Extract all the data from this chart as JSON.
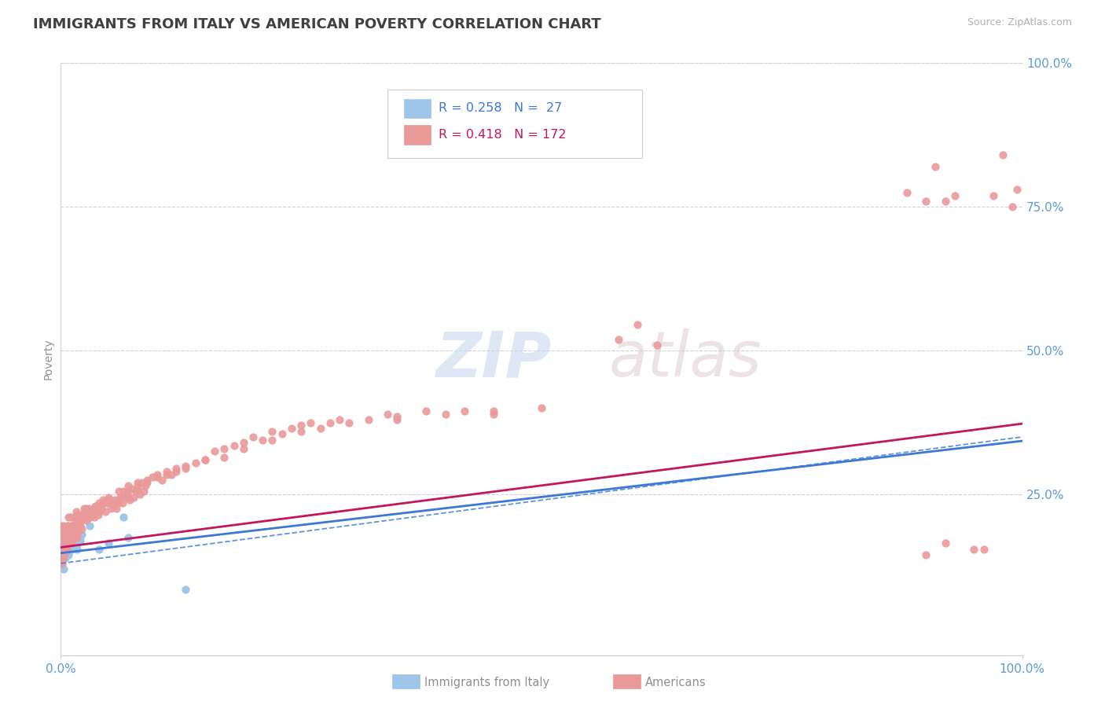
{
  "title": "IMMIGRANTS FROM ITALY VS AMERICAN POVERTY CORRELATION CHART",
  "source_text": "Source: ZipAtlas.com",
  "ylabel": "Poverty",
  "watermark_zip": "ZIP",
  "watermark_atlas": "atlas",
  "blue_R": 0.258,
  "blue_N": 27,
  "pink_R": 0.418,
  "pink_N": 172,
  "blue_color": "#9fc5e8",
  "pink_color": "#ea9999",
  "blue_line_color": "#3c78d8",
  "pink_line_color": "#c2185b",
  "blue_scatter": [
    [
      0.001,
      0.13
    ],
    [
      0.002,
      0.155
    ],
    [
      0.003,
      0.12
    ],
    [
      0.004,
      0.165
    ],
    [
      0.005,
      0.14
    ],
    [
      0.006,
      0.18
    ],
    [
      0.007,
      0.175
    ],
    [
      0.008,
      0.145
    ],
    [
      0.009,
      0.16
    ],
    [
      0.01,
      0.19
    ],
    [
      0.011,
      0.155
    ],
    [
      0.012,
      0.17
    ],
    [
      0.013,
      0.165
    ],
    [
      0.015,
      0.21
    ],
    [
      0.016,
      0.175
    ],
    [
      0.017,
      0.155
    ],
    [
      0.018,
      0.165
    ],
    [
      0.02,
      0.17
    ],
    [
      0.022,
      0.18
    ],
    [
      0.025,
      0.21
    ],
    [
      0.03,
      0.195
    ],
    [
      0.04,
      0.155
    ],
    [
      0.05,
      0.165
    ],
    [
      0.055,
      0.23
    ],
    [
      0.065,
      0.21
    ],
    [
      0.07,
      0.175
    ],
    [
      0.13,
      0.085
    ]
  ],
  "pink_scatter": [
    [
      0.0005,
      0.195
    ],
    [
      0.001,
      0.155
    ],
    [
      0.0015,
      0.13
    ],
    [
      0.002,
      0.175
    ],
    [
      0.0025,
      0.14
    ],
    [
      0.003,
      0.165
    ],
    [
      0.0035,
      0.185
    ],
    [
      0.004,
      0.145
    ],
    [
      0.0045,
      0.17
    ],
    [
      0.005,
      0.19
    ],
    [
      0.0055,
      0.155
    ],
    [
      0.006,
      0.175
    ],
    [
      0.0065,
      0.165
    ],
    [
      0.007,
      0.195
    ],
    [
      0.0075,
      0.185
    ],
    [
      0.008,
      0.21
    ],
    [
      0.0085,
      0.175
    ],
    [
      0.009,
      0.165
    ],
    [
      0.0095,
      0.19
    ],
    [
      0.01,
      0.21
    ],
    [
      0.011,
      0.18
    ],
    [
      0.012,
      0.195
    ],
    [
      0.013,
      0.185
    ],
    [
      0.014,
      0.175
    ],
    [
      0.015,
      0.205
    ],
    [
      0.016,
      0.22
    ],
    [
      0.017,
      0.19
    ],
    [
      0.018,
      0.215
    ],
    [
      0.019,
      0.2
    ],
    [
      0.02,
      0.215
    ],
    [
      0.021,
      0.205
    ],
    [
      0.022,
      0.19
    ],
    [
      0.023,
      0.215
    ],
    [
      0.024,
      0.225
    ],
    [
      0.025,
      0.21
    ],
    [
      0.026,
      0.225
    ],
    [
      0.027,
      0.205
    ],
    [
      0.028,
      0.215
    ],
    [
      0.029,
      0.225
    ],
    [
      0.03,
      0.22
    ],
    [
      0.031,
      0.21
    ],
    [
      0.032,
      0.22
    ],
    [
      0.033,
      0.215
    ],
    [
      0.034,
      0.225
    ],
    [
      0.035,
      0.21
    ],
    [
      0.036,
      0.23
    ],
    [
      0.037,
      0.22
    ],
    [
      0.038,
      0.225
    ],
    [
      0.039,
      0.215
    ],
    [
      0.04,
      0.235
    ],
    [
      0.042,
      0.225
    ],
    [
      0.044,
      0.24
    ],
    [
      0.046,
      0.22
    ],
    [
      0.048,
      0.235
    ],
    [
      0.05,
      0.245
    ],
    [
      0.052,
      0.225
    ],
    [
      0.054,
      0.235
    ],
    [
      0.056,
      0.24
    ],
    [
      0.058,
      0.225
    ],
    [
      0.06,
      0.235
    ],
    [
      0.062,
      0.245
    ],
    [
      0.064,
      0.235
    ],
    [
      0.066,
      0.245
    ],
    [
      0.068,
      0.25
    ],
    [
      0.07,
      0.255
    ],
    [
      0.072,
      0.24
    ],
    [
      0.074,
      0.26
    ],
    [
      0.076,
      0.245
    ],
    [
      0.078,
      0.255
    ],
    [
      0.08,
      0.265
    ],
    [
      0.082,
      0.25
    ],
    [
      0.084,
      0.27
    ],
    [
      0.086,
      0.255
    ],
    [
      0.088,
      0.265
    ],
    [
      0.09,
      0.275
    ],
    [
      0.095,
      0.28
    ],
    [
      0.1,
      0.285
    ],
    [
      0.105,
      0.275
    ],
    [
      0.11,
      0.29
    ],
    [
      0.115,
      0.285
    ],
    [
      0.12,
      0.295
    ],
    [
      0.13,
      0.3
    ],
    [
      0.14,
      0.305
    ],
    [
      0.15,
      0.31
    ],
    [
      0.16,
      0.325
    ],
    [
      0.17,
      0.33
    ],
    [
      0.18,
      0.335
    ],
    [
      0.19,
      0.34
    ],
    [
      0.2,
      0.35
    ],
    [
      0.21,
      0.345
    ],
    [
      0.22,
      0.36
    ],
    [
      0.23,
      0.355
    ],
    [
      0.24,
      0.365
    ],
    [
      0.25,
      0.37
    ],
    [
      0.26,
      0.375
    ],
    [
      0.27,
      0.365
    ],
    [
      0.28,
      0.375
    ],
    [
      0.29,
      0.38
    ],
    [
      0.3,
      0.375
    ],
    [
      0.32,
      0.38
    ],
    [
      0.34,
      0.39
    ],
    [
      0.35,
      0.385
    ],
    [
      0.38,
      0.395
    ],
    [
      0.4,
      0.39
    ],
    [
      0.42,
      0.395
    ],
    [
      0.45,
      0.395
    ],
    [
      0.5,
      0.4
    ],
    [
      0.001,
      0.165
    ],
    [
      0.002,
      0.14
    ],
    [
      0.003,
      0.185
    ],
    [
      0.004,
      0.16
    ],
    [
      0.005,
      0.175
    ],
    [
      0.006,
      0.155
    ],
    [
      0.007,
      0.195
    ],
    [
      0.008,
      0.18
    ],
    [
      0.009,
      0.17
    ],
    [
      0.01,
      0.195
    ],
    [
      0.011,
      0.165
    ],
    [
      0.012,
      0.185
    ],
    [
      0.013,
      0.175
    ],
    [
      0.014,
      0.19
    ],
    [
      0.015,
      0.185
    ],
    [
      0.016,
      0.195
    ],
    [
      0.017,
      0.175
    ],
    [
      0.018,
      0.185
    ],
    [
      0.019,
      0.19
    ],
    [
      0.02,
      0.195
    ],
    [
      0.025,
      0.215
    ],
    [
      0.03,
      0.22
    ],
    [
      0.035,
      0.225
    ],
    [
      0.04,
      0.22
    ],
    [
      0.045,
      0.235
    ],
    [
      0.05,
      0.24
    ],
    [
      0.055,
      0.235
    ],
    [
      0.06,
      0.24
    ],
    [
      0.065,
      0.255
    ],
    [
      0.07,
      0.245
    ],
    [
      0.08,
      0.26
    ],
    [
      0.09,
      0.27
    ],
    [
      0.1,
      0.28
    ],
    [
      0.11,
      0.285
    ],
    [
      0.12,
      0.29
    ],
    [
      0.13,
      0.295
    ],
    [
      0.15,
      0.31
    ],
    [
      0.17,
      0.315
    ],
    [
      0.19,
      0.33
    ],
    [
      0.22,
      0.345
    ],
    [
      0.25,
      0.36
    ],
    [
      0.003,
      0.195
    ],
    [
      0.006,
      0.17
    ],
    [
      0.01,
      0.185
    ],
    [
      0.015,
      0.175
    ],
    [
      0.02,
      0.205
    ],
    [
      0.025,
      0.22
    ],
    [
      0.03,
      0.215
    ],
    [
      0.04,
      0.23
    ],
    [
      0.05,
      0.24
    ],
    [
      0.06,
      0.255
    ],
    [
      0.07,
      0.265
    ],
    [
      0.08,
      0.27
    ],
    [
      0.35,
      0.38
    ],
    [
      0.45,
      0.39
    ],
    [
      0.9,
      0.145
    ],
    [
      0.92,
      0.165
    ],
    [
      0.95,
      0.155
    ],
    [
      0.96,
      0.155
    ],
    [
      0.97,
      0.77
    ],
    [
      0.98,
      0.84
    ],
    [
      0.99,
      0.75
    ],
    [
      0.995,
      0.78
    ],
    [
      0.58,
      0.52
    ],
    [
      0.6,
      0.545
    ],
    [
      0.62,
      0.51
    ],
    [
      0.88,
      0.775
    ],
    [
      0.9,
      0.76
    ],
    [
      0.91,
      0.82
    ],
    [
      0.92,
      0.76
    ],
    [
      0.93,
      0.77
    ]
  ],
  "xlim": [
    0.0,
    1.0
  ],
  "ylim_data": [
    -0.03,
    1.0
  ],
  "ytick_values": [
    0.25,
    0.5,
    0.75,
    1.0
  ],
  "ytick_labels": [
    "25.0%",
    "50.0%",
    "75.0%",
    "100.0%"
  ],
  "xtick_values": [
    0.0,
    1.0
  ],
  "xtick_labels": [
    "0.0%",
    "100.0%"
  ],
  "grid_color": "#d0d0d8",
  "background_color": "#ffffff",
  "title_color": "#404040",
  "title_fontsize": 13,
  "axis_label_color": "#909090",
  "tick_label_color": "#5b9bd5",
  "legend_label1": "Immigrants from Italy",
  "legend_label2": "Americans",
  "blue_reg_intercept": 0.148,
  "blue_reg_slope": 0.195,
  "pink_reg_intercept": 0.158,
  "pink_reg_slope": 0.215,
  "blue_dash_intercept": 0.13,
  "blue_dash_slope": 0.22
}
